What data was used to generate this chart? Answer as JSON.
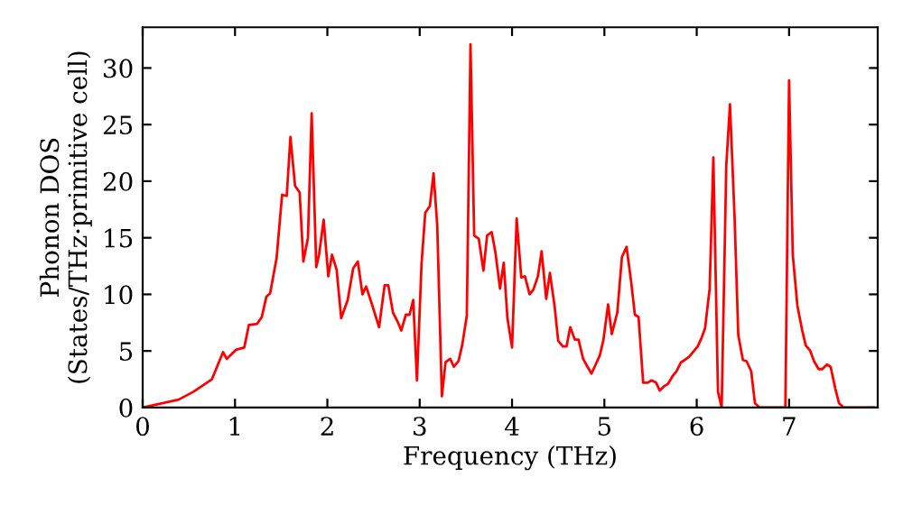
{
  "chart_data": {
    "type": "line",
    "xlabel": "Frequency (THz)",
    "ylabel": "Phonon DOS\n(States/THz·primitive cell)",
    "xlim": [
      0,
      7.96
    ],
    "ylim": [
      0,
      33.6
    ],
    "xticks": [
      0,
      1,
      2,
      3,
      4,
      5,
      6,
      7
    ],
    "yticks": [
      0,
      5,
      10,
      15,
      20,
      25,
      30
    ],
    "grid": false,
    "legend": false,
    "marker": "none",
    "line_style": "solid",
    "series": [
      {
        "color": "#ff0000",
        "x": [
          0,
          0.39,
          0.55,
          0.75,
          0.87,
          0.91,
          1.01,
          1.1,
          1.15,
          1.24,
          1.29,
          1.34,
          1.38,
          1.45,
          1.51,
          1.56,
          1.6,
          1.65,
          1.7,
          1.74,
          1.79,
          1.83,
          1.88,
          1.91,
          1.96,
          2.01,
          2.05,
          2.1,
          2.15,
          2.22,
          2.28,
          2.33,
          2.38,
          2.42,
          2.48,
          2.56,
          2.62,
          2.66,
          2.71,
          2.76,
          2.8,
          2.85,
          2.89,
          2.93,
          2.97,
          3.02,
          3.06,
          3.11,
          3.15,
          3.19,
          3.24,
          3.28,
          3.33,
          3.37,
          3.42,
          3.46,
          3.51,
          3.55,
          3.59,
          3.64,
          3.69,
          3.73,
          3.78,
          3.82,
          3.87,
          3.91,
          3.95,
          4.0,
          4.05,
          4.1,
          4.14,
          4.19,
          4.23,
          4.28,
          4.32,
          4.37,
          4.41,
          4.46,
          4.5,
          4.55,
          4.59,
          4.63,
          4.68,
          4.72,
          4.77,
          4.81,
          4.86,
          4.9,
          4.95,
          4.99,
          5.04,
          5.08,
          5.14,
          5.19,
          5.24,
          5.29,
          5.33,
          5.37,
          5.42,
          5.47,
          5.51,
          5.56,
          5.6,
          5.65,
          5.69,
          5.74,
          5.78,
          5.83,
          5.87,
          5.92,
          5.96,
          6.01,
          6.05,
          6.09,
          6.14,
          6.18,
          6.23,
          6.27,
          6.32,
          6.36,
          6.41,
          6.45,
          6.5,
          6.54,
          6.59,
          6.63,
          6.68,
          6.96,
          7.0,
          7.04,
          7.09,
          7.14,
          7.18,
          7.23,
          7.27,
          7.32,
          7.36,
          7.41,
          7.45,
          7.5,
          7.54,
          7.59,
          7.91
        ],
        "values": [
          0,
          0.7,
          1.4,
          2.5,
          4.9,
          4.3,
          5.1,
          5.3,
          7.3,
          7.4,
          8.0,
          9.8,
          10.1,
          13.2,
          18.8,
          18.7,
          23.9,
          19.6,
          19.0,
          12.9,
          15.0,
          26.0,
          12.4,
          13.5,
          16.6,
          11.6,
          13.5,
          12.2,
          7.9,
          9.5,
          12.3,
          12.9,
          10.0,
          10.7,
          9.2,
          7.1,
          10.8,
          10.8,
          8.4,
          7.6,
          6.8,
          8.2,
          8.2,
          9.5,
          2.4,
          12.7,
          17.2,
          17.8,
          20.7,
          16.1,
          1.0,
          4.0,
          4.3,
          3.6,
          4.1,
          5.5,
          8.1,
          32.1,
          15.2,
          14.9,
          12.1,
          15.2,
          15.5,
          13.7,
          10.5,
          12.8,
          7.9,
          5.3,
          16.7,
          11.5,
          11.6,
          10.0,
          10.4,
          11.6,
          13.8,
          9.6,
          11.9,
          9.0,
          5.9,
          5.4,
          5.4,
          7.1,
          6.0,
          6.0,
          4.3,
          3.7,
          3.0,
          3.7,
          4.6,
          6.0,
          9.1,
          6.5,
          8.4,
          13.3,
          14.2,
          11.1,
          8.2,
          8.0,
          2.2,
          2.2,
          2.4,
          2.2,
          1.5,
          1.9,
          2.1,
          2.8,
          3.2,
          4.0,
          4.2,
          4.5,
          4.9,
          5.4,
          6.1,
          7.0,
          10.5,
          22.1,
          1.4,
          0,
          21.4,
          26.8,
          16.8,
          6.4,
          4.2,
          4.1,
          3.2,
          0.4,
          0,
          0,
          28.9,
          13.5,
          9.0,
          6.9,
          5.5,
          5.0,
          4.1,
          3.4,
          3.4,
          3.8,
          3.6,
          1.7,
          0.4,
          0,
          0
        ]
      }
    ]
  }
}
